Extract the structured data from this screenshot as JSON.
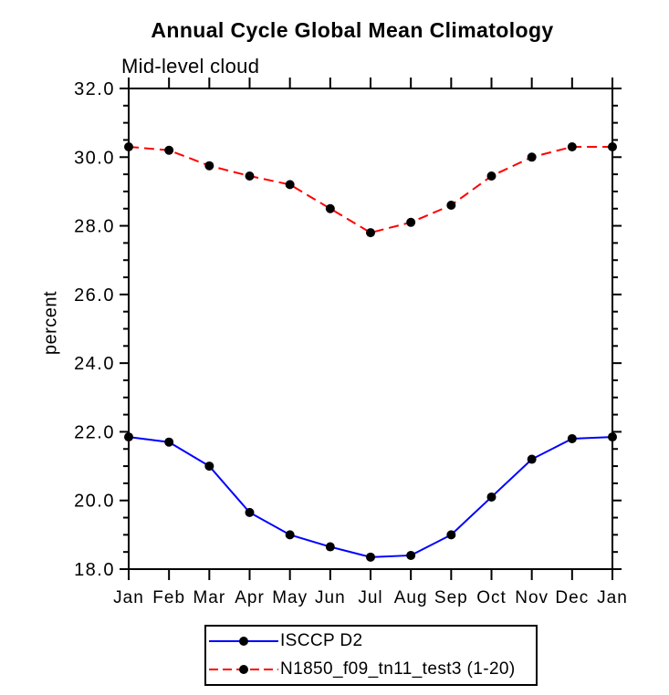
{
  "chart_data": {
    "type": "line",
    "title": "Annual Cycle Global Mean Climatology",
    "subtitle": "Mid-level cloud",
    "ylabel": "percent",
    "xlabel": "",
    "categories": [
      "Jan",
      "Feb",
      "Mar",
      "Apr",
      "May",
      "Jun",
      "Jul",
      "Aug",
      "Sep",
      "Oct",
      "Nov",
      "Dec",
      "Jan"
    ],
    "ylim": [
      18.0,
      32.0
    ],
    "yticks": [
      18.0,
      20.0,
      22.0,
      24.0,
      26.0,
      28.0,
      30.0,
      32.0
    ],
    "ytick_labels": [
      "18.0",
      "20.0",
      "22.0",
      "24.0",
      "26.0",
      "28.0",
      "30.0",
      "32.0"
    ],
    "yminor_interval": 0.5,
    "grid": false,
    "legend_position": "bottom-center",
    "background_color": "#ffffff",
    "axis_color": "#000000",
    "text_color": "#000000",
    "series": [
      {
        "name": "ISCCP D2",
        "color": "#0000ff",
        "line_style": "solid",
        "marker": "filled-circle",
        "marker_color": "#000000",
        "values": [
          21.85,
          21.7,
          21.0,
          19.65,
          19.0,
          18.65,
          18.35,
          18.4,
          19.0,
          20.1,
          21.2,
          21.8,
          21.85
        ]
      },
      {
        "name": "N1850_f09_tn11_test3 (1-20)",
        "color": "#ff0000",
        "line_style": "dashed",
        "marker": "filled-circle",
        "marker_color": "#000000",
        "values": [
          30.3,
          30.2,
          29.75,
          29.45,
          29.2,
          28.5,
          27.8,
          28.1,
          28.6,
          29.45,
          30.0,
          30.3,
          30.3
        ]
      }
    ]
  }
}
